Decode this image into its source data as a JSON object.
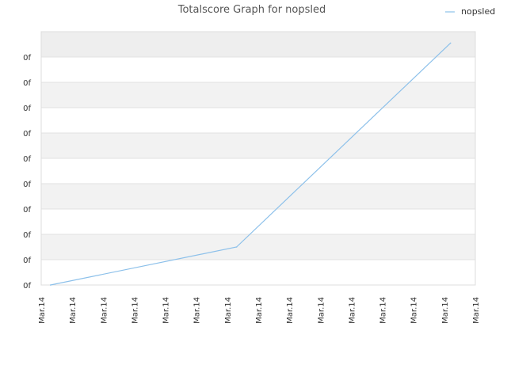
{
  "chart_data": {
    "type": "line",
    "title": "Totalscore Graph for nopsled",
    "xlabel": "",
    "ylabel": "",
    "x_ticks": [
      "Mar.14",
      "Mar.14",
      "Mar.14",
      "Mar.14",
      "Mar.14",
      "Mar.14",
      "Mar.14",
      "Mar.14",
      "Mar.14",
      "Mar.14",
      "Mar.14",
      "Mar.14",
      "Mar.14",
      "Mar.14",
      "Mar.14"
    ],
    "y_ticks": [
      "0f",
      "0f",
      "0f",
      "0f",
      "0f",
      "0f",
      "0f",
      "0f",
      "0f",
      "0f"
    ],
    "xlim": [
      0,
      14
    ],
    "ylim": [
      0,
      10
    ],
    "grid": true,
    "legend_position": "top-right",
    "series": [
      {
        "name": "nopsled",
        "color": "#8cc0ea",
        "x": [
          0.3,
          6.3,
          13.2
        ],
        "y": [
          0,
          1.5,
          9.55
        ]
      }
    ]
  }
}
